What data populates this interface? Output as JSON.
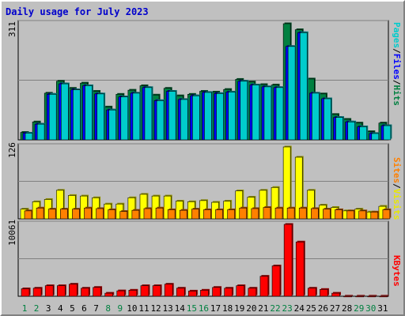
{
  "title": "Daily usage for July 2023",
  "colors": {
    "pages": "#00CCCC",
    "files": "#0000FF",
    "hits": "#008040",
    "sites": "#FF8000",
    "visits": "#FFFF00",
    "kbytes": "#FF0000",
    "weekday_label": "#000000",
    "weekend_label": "#008040"
  },
  "legend": {
    "top": {
      "pages": "Pages",
      "files": "Files",
      "hits": "Hits",
      "sep": "/"
    },
    "middle": {
      "sites": "Sites",
      "visits": "Visits",
      "sep": "/"
    },
    "bottom": {
      "kbytes": "KBytes"
    }
  },
  "chart_data": [
    {
      "type": "bar",
      "ymax_label": "311",
      "ylim": [
        0,
        311
      ],
      "grid": true,
      "categories": [
        "1",
        "2",
        "3",
        "4",
        "5",
        "6",
        "7",
        "8",
        "9",
        "10",
        "11",
        "12",
        "13",
        "14",
        "15",
        "16",
        "17",
        "18",
        "19",
        "20",
        "21",
        "22",
        "23",
        "24",
        "25",
        "26",
        "27",
        "28",
        "29",
        "30",
        "31"
      ],
      "weekend_days": [
        1,
        2,
        8,
        9,
        15,
        16,
        22,
        23,
        29,
        30
      ],
      "series": [
        {
          "name": "Hits",
          "values": [
            20,
            48,
            125,
            157,
            138,
            152,
            130,
            88,
            122,
            133,
            145,
            120,
            138,
            118,
            122,
            130,
            128,
            135,
            162,
            155,
            148,
            147,
            311,
            295,
            163,
            123,
            68,
            55,
            45,
            22,
            45
          ]
        },
        {
          "name": "Files",
          "values": [
            18,
            42,
            122,
            150,
            134,
            145,
            123,
            80,
            115,
            125,
            140,
            105,
            130,
            108,
            118,
            127,
            124,
            128,
            157,
            147,
            142,
            140,
            250,
            287,
            125,
            110,
            60,
            48,
            35,
            17,
            38
          ]
        },
        {
          "name": "Pages",
          "values": [
            18,
            42,
            122,
            150,
            134,
            145,
            123,
            80,
            115,
            125,
            140,
            105,
            130,
            108,
            118,
            127,
            124,
            128,
            157,
            147,
            142,
            140,
            250,
            287,
            125,
            110,
            60,
            48,
            35,
            17,
            38
          ]
        }
      ]
    },
    {
      "type": "bar",
      "ymax_label": "126",
      "ylim": [
        0,
        126
      ],
      "grid": true,
      "categories": [
        "1",
        "2",
        "3",
        "4",
        "5",
        "6",
        "7",
        "8",
        "9",
        "10",
        "11",
        "12",
        "13",
        "14",
        "15",
        "16",
        "17",
        "18",
        "19",
        "20",
        "21",
        "22",
        "23",
        "24",
        "25",
        "26",
        "27",
        "28",
        "29",
        "30",
        "31"
      ],
      "series": [
        {
          "name": "Visits",
          "values": [
            17,
            30,
            34,
            50,
            41,
            40,
            37,
            26,
            26,
            37,
            43,
            40,
            40,
            31,
            30,
            32,
            29,
            31,
            49,
            38,
            50,
            55,
            126,
            108,
            50,
            24,
            20,
            14,
            17,
            12,
            22
          ]
        },
        {
          "name": "Sites",
          "values": [
            14,
            19,
            17,
            17,
            17,
            19,
            18,
            16,
            13,
            15,
            18,
            19,
            16,
            15,
            17,
            16,
            16,
            16,
            19,
            18,
            20,
            19,
            19,
            19,
            18,
            17,
            16,
            14,
            14,
            12,
            16
          ]
        }
      ]
    },
    {
      "type": "bar",
      "ymax_label": "10061",
      "ylim": [
        0,
        10061
      ],
      "grid": true,
      "categories": [
        "1",
        "2",
        "3",
        "4",
        "5",
        "6",
        "7",
        "8",
        "9",
        "10",
        "11",
        "12",
        "13",
        "14",
        "15",
        "16",
        "17",
        "18",
        "19",
        "20",
        "21",
        "22",
        "23",
        "24",
        "25",
        "26",
        "27",
        "28",
        "29",
        "30",
        "31"
      ],
      "series": [
        {
          "name": "KBytes",
          "values": [
            1050,
            1130,
            1480,
            1480,
            1690,
            1130,
            1240,
            430,
            760,
            850,
            1480,
            1480,
            1690,
            1130,
            730,
            850,
            1240,
            1130,
            1480,
            1130,
            2800,
            4250,
            10061,
            7600,
            1130,
            960,
            430,
            20,
            20,
            20,
            20
          ]
        }
      ]
    }
  ]
}
